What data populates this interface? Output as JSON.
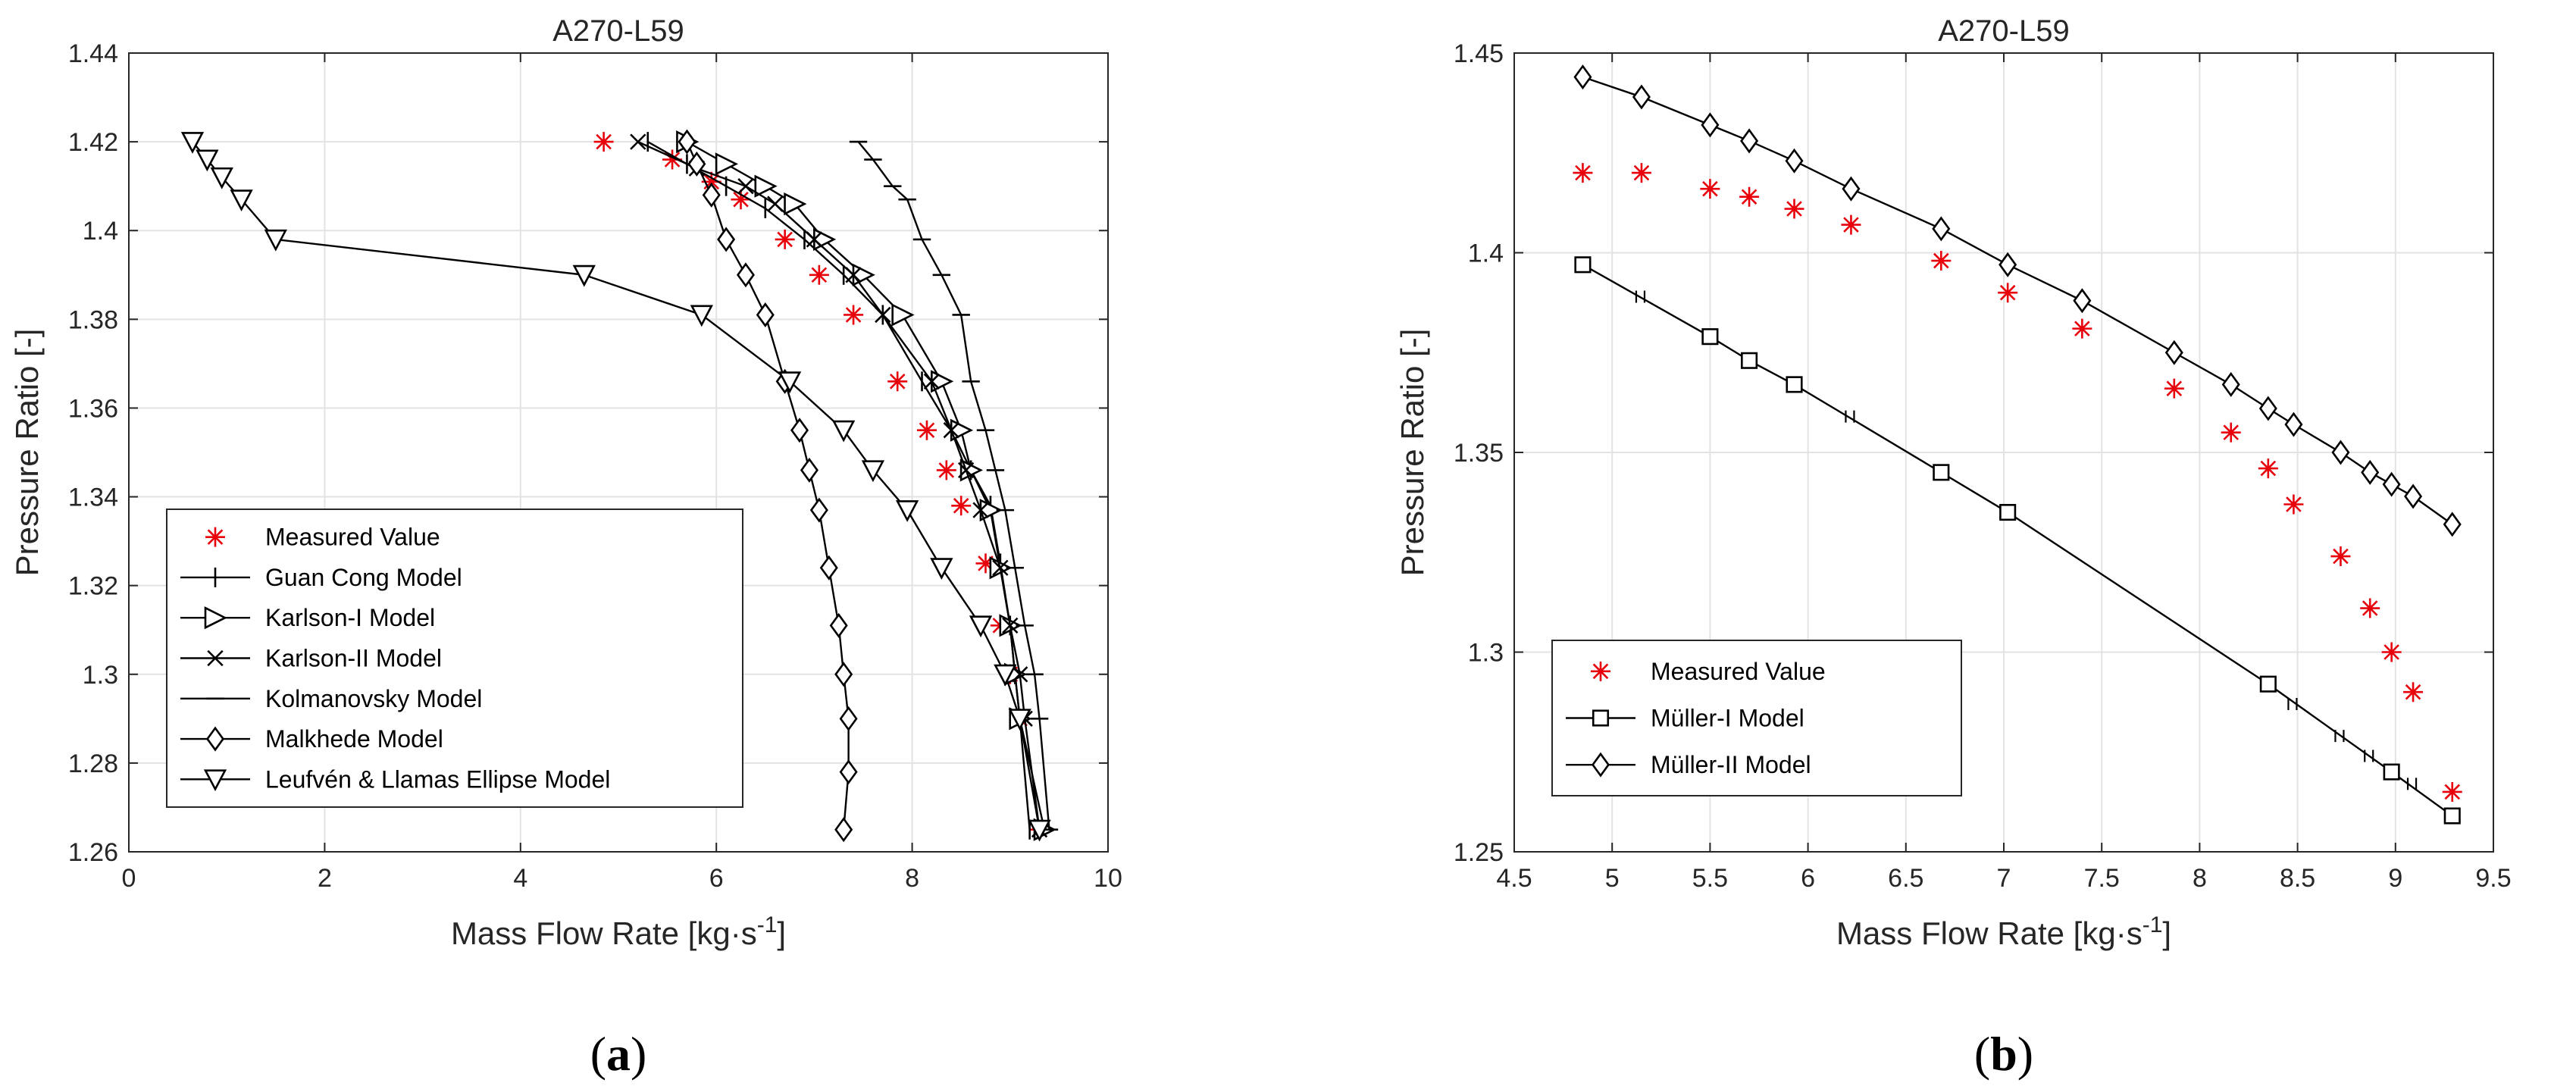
{
  "chart_data": [
    {
      "type": "line",
      "title": "A270-L59",
      "xlabel_main": "Mass Flow Rate [kg·s",
      "xlabel_sup": "-1",
      "xlabel_end": "]",
      "ylabel": "Pressure Ratio [-]",
      "xlim": [
        0,
        10
      ],
      "ylim": [
        1.26,
        1.44
      ],
      "xticks": [
        0,
        2,
        4,
        6,
        8,
        10
      ],
      "xtick_labels": [
        "0",
        "2",
        "4",
        "6",
        "8",
        "10"
      ],
      "yticks": [
        1.26,
        1.28,
        1.3,
        1.32,
        1.34,
        1.36,
        1.38,
        1.4,
        1.42,
        1.44
      ],
      "ytick_labels": [
        "1.26",
        "1.28",
        "1.3",
        "1.32",
        "1.34",
        "1.36",
        "1.38",
        "1.4",
        "1.42",
        "1.44"
      ],
      "grid": true,
      "legend_position": "bottom-left",
      "caption": "a",
      "series": [
        {
          "name": "Measured Value",
          "marker": "star",
          "line": false,
          "color": "#e8000b",
          "x": [
            4.85,
            5.55,
            5.95,
            6.25,
            6.7,
            7.05,
            7.4,
            7.85,
            8.15,
            8.35,
            8.5,
            8.75,
            8.9,
            9.0,
            9.1,
            9.3
          ],
          "y": [
            1.42,
            1.416,
            1.411,
            1.407,
            1.398,
            1.39,
            1.381,
            1.366,
            1.355,
            1.346,
            1.338,
            1.325,
            1.311,
            1.3,
            1.29,
            1.265
          ]
        },
        {
          "name": "Guan Cong Model",
          "marker": "vbar",
          "line": true,
          "color": "#000000",
          "x": [
            5.3,
            5.7,
            6.1,
            6.5,
            6.9,
            7.3,
            7.7,
            8.1,
            8.4,
            8.6,
            8.8,
            8.9,
            9.0,
            9.05,
            9.1,
            9.2
          ],
          "y": [
            1.42,
            1.415,
            1.41,
            1.405,
            1.398,
            1.39,
            1.381,
            1.366,
            1.355,
            1.346,
            1.338,
            1.325,
            1.311,
            1.3,
            1.29,
            1.265
          ]
        },
        {
          "name": "Karlson-I Model",
          "marker": "tri-right",
          "line": true,
          "color": "#000000",
          "x": [
            5.7,
            6.1,
            6.5,
            6.8,
            7.1,
            7.5,
            7.9,
            8.3,
            8.5,
            8.6,
            8.8,
            8.9,
            9.0,
            9.05,
            9.1,
            9.35
          ],
          "y": [
            1.42,
            1.415,
            1.41,
            1.406,
            1.398,
            1.39,
            1.381,
            1.366,
            1.355,
            1.346,
            1.337,
            1.324,
            1.311,
            1.3,
            1.29,
            1.265
          ]
        },
        {
          "name": "Karlson-II Model",
          "marker": "x",
          "line": true,
          "color": "#000000",
          "x": [
            5.2,
            5.8,
            6.3,
            6.6,
            7.0,
            7.4,
            7.7,
            8.2,
            8.4,
            8.55,
            8.7,
            8.9,
            9.0,
            9.1,
            9.15,
            9.3
          ],
          "y": [
            1.42,
            1.414,
            1.41,
            1.406,
            1.398,
            1.39,
            1.381,
            1.366,
            1.355,
            1.346,
            1.337,
            1.324,
            1.311,
            1.3,
            1.29,
            1.265
          ]
        },
        {
          "name": "Kolmanovsky Model",
          "marker": "hbar",
          "line": true,
          "color": "#000000",
          "x": [
            7.45,
            7.6,
            7.8,
            7.95,
            8.1,
            8.3,
            8.5,
            8.6,
            8.75,
            8.85,
            8.95,
            9.05,
            9.15,
            9.25,
            9.3,
            9.4
          ],
          "y": [
            1.42,
            1.416,
            1.41,
            1.407,
            1.398,
            1.39,
            1.381,
            1.366,
            1.355,
            1.346,
            1.337,
            1.324,
            1.311,
            1.3,
            1.29,
            1.265
          ]
        },
        {
          "name": "Malkhede Model",
          "marker": "diamond",
          "line": true,
          "color": "#000000",
          "x": [
            5.7,
            5.8,
            5.95,
            6.1,
            6.3,
            6.5,
            6.7,
            6.85,
            6.95,
            7.05,
            7.15,
            7.25,
            7.3,
            7.35,
            7.35,
            7.3
          ],
          "y": [
            1.42,
            1.415,
            1.408,
            1.398,
            1.39,
            1.381,
            1.366,
            1.355,
            1.346,
            1.337,
            1.324,
            1.311,
            1.3,
            1.29,
            1.278,
            1.265
          ]
        },
        {
          "name": "Leufvén & Llamas Ellipse Model",
          "marker": "tri-down",
          "line": true,
          "color": "#000000",
          "x": [
            0.65,
            0.8,
            0.95,
            1.15,
            1.5,
            4.65,
            5.85,
            6.75,
            7.3,
            7.6,
            7.95,
            8.3,
            8.7,
            8.95,
            9.1,
            9.3
          ],
          "y": [
            1.42,
            1.416,
            1.412,
            1.407,
            1.398,
            1.39,
            1.381,
            1.366,
            1.355,
            1.346,
            1.337,
            1.324,
            1.311,
            1.3,
            1.29,
            1.265
          ]
        }
      ]
    },
    {
      "type": "line",
      "title": "A270-L59",
      "xlabel_main": "Mass Flow Rate [kg·s",
      "xlabel_sup": "-1",
      "xlabel_end": "]",
      "ylabel": "Pressure Ratio [-]",
      "xlim": [
        4.5,
        9.5
      ],
      "ylim": [
        1.25,
        1.45
      ],
      "xticks": [
        4.5,
        5,
        5.5,
        6,
        6.5,
        7,
        7.5,
        8,
        8.5,
        9,
        9.5
      ],
      "xtick_labels": [
        "4.5",
        "5",
        "5.5",
        "6",
        "6.5",
        "7",
        "7.5",
        "8",
        "8.5",
        "9",
        "9.5"
      ],
      "yticks": [
        1.25,
        1.3,
        1.35,
        1.4,
        1.45
      ],
      "ytick_labels": [
        "1.25",
        "1.3",
        "1.35",
        "1.4",
        "1.45"
      ],
      "grid": true,
      "legend_position": "bottom-left",
      "caption": "b",
      "series": [
        {
          "name": "Measured Value",
          "marker": "star",
          "line": false,
          "color": "#e8000b",
          "x": [
            4.85,
            5.15,
            5.5,
            5.7,
            5.93,
            6.22,
            6.68,
            7.02,
            7.4,
            7.87,
            8.16,
            8.35,
            8.48,
            8.72,
            8.87,
            8.98,
            9.09,
            9.29
          ],
          "y": [
            1.42,
            1.42,
            1.416,
            1.414,
            1.411,
            1.407,
            1.398,
            1.39,
            1.381,
            1.366,
            1.355,
            1.346,
            1.337,
            1.324,
            1.311,
            1.3,
            1.29,
            1.265
          ]
        },
        {
          "name": "Müller-I Model",
          "marker": "square",
          "line": true,
          "color": "#000000",
          "x": [
            4.85,
            5.5,
            5.7,
            5.93,
            6.68,
            7.02,
            8.35,
            8.98,
            9.29
          ],
          "y": [
            1.397,
            1.379,
            1.373,
            1.367,
            1.345,
            1.335,
            1.292,
            1.27,
            1.259
          ],
          "ticks_x": [
            5.15,
            6.22,
            8.48,
            8.72,
            8.87,
            9.09
          ],
          "ticks_y": [
            1.389,
            1.359,
            1.287,
            1.279,
            1.274,
            1.267
          ]
        },
        {
          "name": "Müller-II Model",
          "marker": "diamond",
          "line": true,
          "color": "#000000",
          "x": [
            4.85,
            5.15,
            5.5,
            5.7,
            5.93,
            6.22,
            6.68,
            7.02,
            7.4,
            7.87,
            8.16,
            8.35,
            8.48,
            8.72,
            8.87,
            8.98,
            9.09,
            9.29
          ],
          "y": [
            1.444,
            1.439,
            1.432,
            1.428,
            1.423,
            1.416,
            1.406,
            1.397,
            1.388,
            1.375,
            1.367,
            1.361,
            1.357,
            1.35,
            1.345,
            1.342,
            1.339,
            1.332
          ]
        }
      ]
    }
  ]
}
